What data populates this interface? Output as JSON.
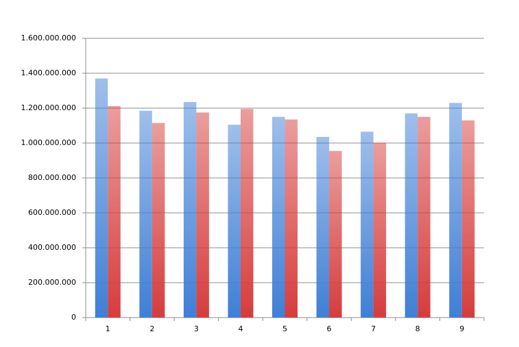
{
  "chart_data": {
    "type": "bar",
    "categories": [
      "1",
      "2",
      "3",
      "4",
      "5",
      "6",
      "7",
      "8",
      "9"
    ],
    "series": [
      {
        "color": "#3f7fd6",
        "values": [
          1370000000,
          1185000000,
          1235000000,
          1105000000,
          1150000000,
          1035000000,
          1065000000,
          1170000000,
          1230000000
        ]
      },
      {
        "color": "#d63c3c",
        "values": [
          1212000000,
          1115000000,
          1175000000,
          1195000000,
          1135000000,
          955000000,
          1002000000,
          1150000000,
          1130000000
        ]
      }
    ],
    "ylim": [
      0,
      1600000000
    ],
    "yticks": [
      0,
      {
        "value": 200000000,
        "label": "200.000.000"
      },
      {
        "value": 400000000,
        "label": "400.000.000"
      },
      {
        "value": 600000000,
        "label": "600.000.000"
      },
      {
        "value": 800000000,
        "label": "800.000.000"
      },
      {
        "value": 1000000000,
        "label": "1.000.000.000"
      },
      {
        "value": 1200000000,
        "label": "1.200.000.000"
      },
      {
        "value": 1400000000,
        "label": "1.400.000.000"
      },
      {
        "value": 1600000000,
        "label": "1.600.000.000"
      }
    ],
    "grid": true
  }
}
